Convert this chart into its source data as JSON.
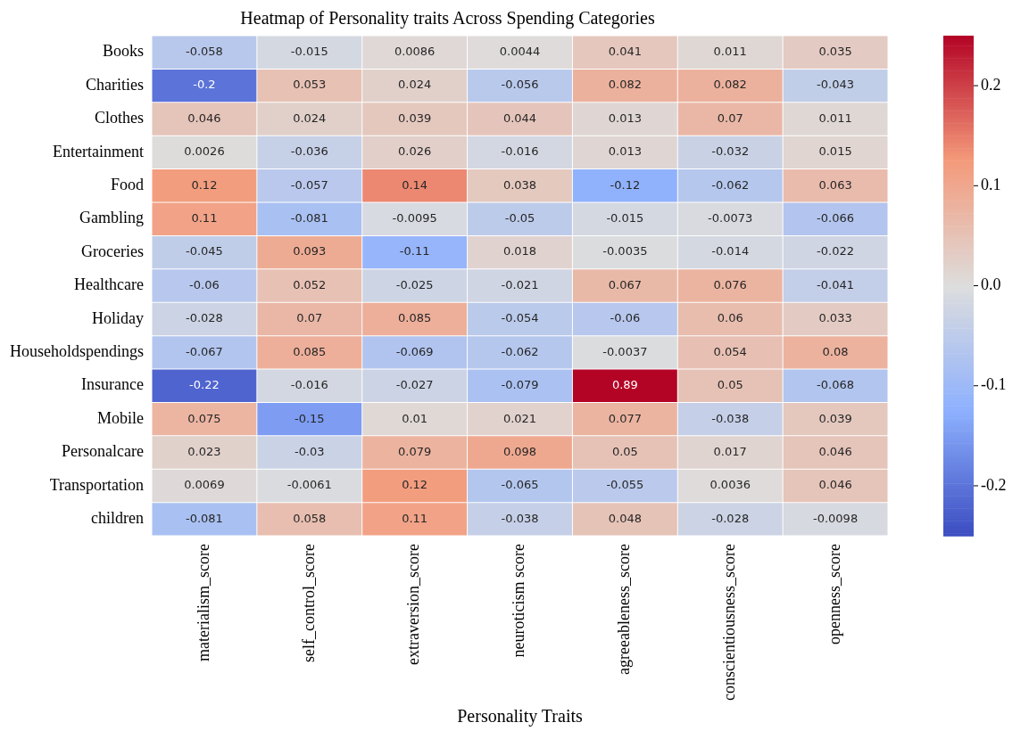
{
  "chart_data": {
    "type": "heatmap",
    "title": "Heatmap of Personality traits Across Spending Categories",
    "xlabel": "Personality Traits",
    "categories": [
      "materialism_score",
      "self_control_score",
      "extraversion_score",
      "neuroticism score",
      "agreeableness_score",
      "conscientiousness_score",
      "openness_score"
    ],
    "y_categories": [
      "Books",
      "Charities",
      "Clothes",
      "Entertainment",
      "Food",
      "Gambling",
      "Groceries",
      "Healthcare",
      "Holiday",
      "Householdspendings",
      "Insurance",
      "Mobile",
      "Personalcare",
      "Transportation",
      "children"
    ],
    "cells": [
      [
        -0.058,
        -0.015,
        0.0086,
        0.0044,
        0.041,
        0.011,
        0.035
      ],
      [
        -0.2,
        0.053,
        0.024,
        -0.056,
        0.082,
        0.082,
        -0.043
      ],
      [
        0.046,
        0.024,
        0.039,
        0.044,
        0.013,
        0.07,
        0.011
      ],
      [
        0.0026,
        -0.036,
        0.026,
        -0.016,
        0.013,
        -0.032,
        0.015
      ],
      [
        0.12,
        -0.057,
        0.14,
        0.038,
        -0.12,
        -0.062,
        0.063
      ],
      [
        0.11,
        -0.081,
        -0.0095,
        -0.05,
        -0.015,
        -0.0073,
        -0.066
      ],
      [
        -0.045,
        0.093,
        -0.11,
        0.018,
        -0.0035,
        -0.014,
        -0.022
      ],
      [
        -0.06,
        0.052,
        -0.025,
        -0.021,
        0.067,
        0.076,
        -0.041
      ],
      [
        -0.028,
        0.07,
        0.085,
        -0.054,
        -0.06,
        0.06,
        0.033
      ],
      [
        -0.067,
        0.085,
        -0.069,
        -0.062,
        -0.0037,
        0.054,
        0.08
      ],
      [
        -0.22,
        -0.016,
        -0.027,
        -0.079,
        0.89,
        0.05,
        -0.068
      ],
      [
        0.075,
        -0.15,
        0.01,
        0.021,
        0.077,
        -0.038,
        0.039
      ],
      [
        0.023,
        -0.03,
        0.079,
        0.098,
        0.05,
        0.017,
        0.046
      ],
      [
        0.0069,
        -0.0061,
        0.12,
        -0.065,
        -0.055,
        0.0036,
        0.046
      ],
      [
        -0.081,
        0.058,
        0.11,
        -0.038,
        0.048,
        -0.028,
        -0.0098
      ]
    ],
    "data_labels": true,
    "clim": [
      -0.25,
      0.25
    ],
    "cticks": [
      -0.2,
      -0.1,
      {
        "value": 0,
        "label": "0.0"
      },
      0.1,
      0.2
    ]
  }
}
